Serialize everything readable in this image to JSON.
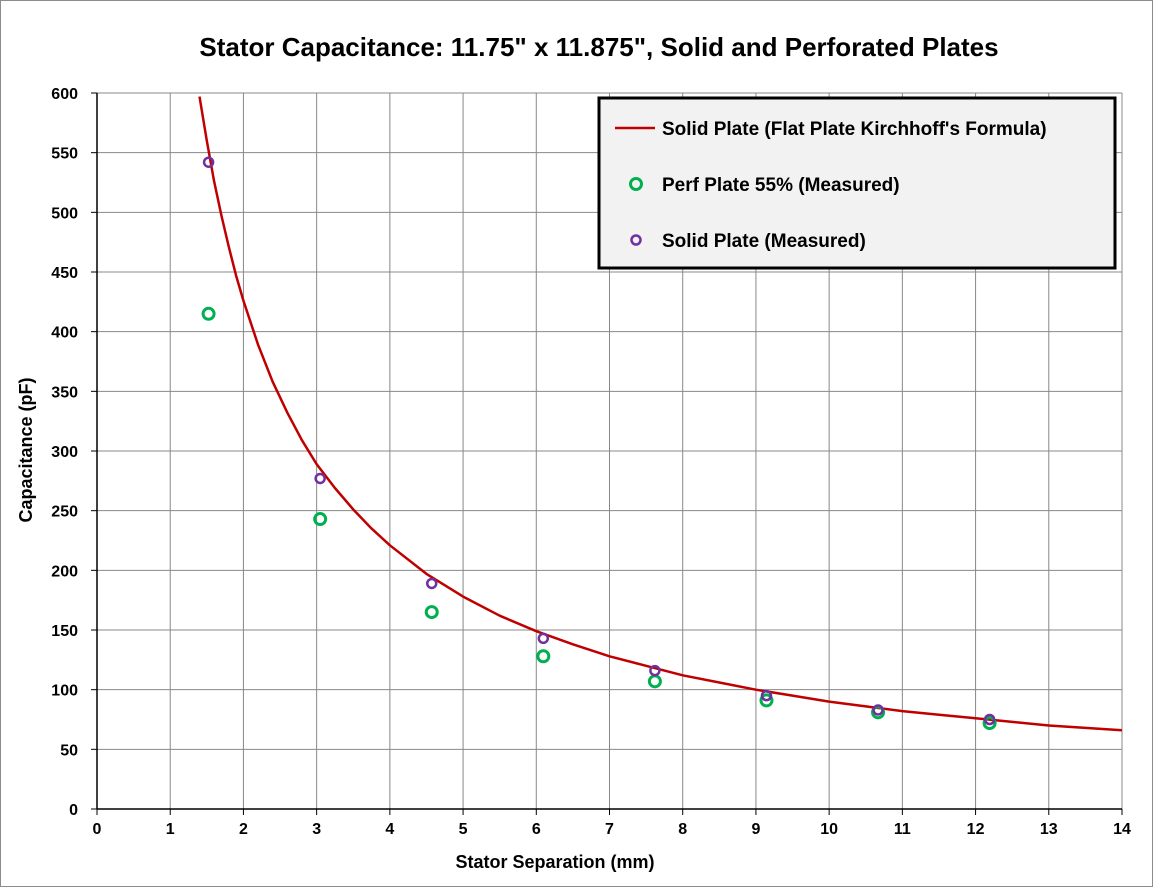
{
  "chart_data": {
    "type": "scatter",
    "title": "Stator Capacitance: 11.75\" x 11.875\", Solid and Perforated Plates",
    "xlabel": "Stator Separation (mm)",
    "ylabel": "Capacitance (pF)",
    "xlim": [
      0,
      14
    ],
    "ylim": [
      0,
      600
    ],
    "xticks": [
      0,
      1,
      2,
      3,
      4,
      5,
      6,
      7,
      8,
      9,
      10,
      11,
      12,
      13,
      14
    ],
    "yticks": [
      0,
      50,
      100,
      150,
      200,
      250,
      300,
      350,
      400,
      450,
      500,
      550,
      600
    ],
    "grid": true,
    "legend_position": "top-right",
    "series": [
      {
        "name": "Solid Plate (Flat Plate Kirchhoff's Formula)",
        "kind": "line",
        "color": "#c00000",
        "x": [
          1.4,
          1.5,
          1.6,
          1.7,
          1.8,
          1.9,
          2.0,
          2.2,
          2.4,
          2.6,
          2.8,
          3.0,
          3.25,
          3.5,
          3.75,
          4.0,
          4.5,
          5.0,
          5.5,
          6.0,
          6.5,
          7.0,
          7.5,
          8.0,
          8.5,
          9.0,
          9.5,
          10.0,
          10.5,
          11.0,
          11.5,
          12.0,
          12.5,
          13.0,
          13.5,
          14.0
        ],
        "y": [
          597,
          560,
          526,
          497,
          471,
          447,
          426,
          389,
          358,
          332,
          309,
          289,
          269,
          251,
          235,
          221,
          197,
          178,
          162,
          149,
          138,
          128,
          120,
          112,
          106,
          100,
          95,
          90,
          86,
          82,
          79,
          76,
          73,
          70,
          68,
          66
        ]
      },
      {
        "name": "Perf Plate 55% (Measured)",
        "kind": "scatter",
        "color": "#00b050",
        "x": [
          1.524,
          3.048,
          4.572,
          6.096,
          7.62,
          9.144,
          10.668,
          12.192
        ],
        "y": [
          415,
          243,
          165,
          128,
          107,
          91,
          81,
          72
        ]
      },
      {
        "name": "Solid Plate (Measured)",
        "kind": "scatter",
        "color": "#7030a0",
        "x": [
          1.524,
          3.048,
          4.572,
          6.096,
          7.62,
          9.144,
          10.668,
          12.192
        ],
        "y": [
          542,
          277,
          189,
          143,
          116,
          95,
          83,
          75
        ]
      }
    ]
  }
}
